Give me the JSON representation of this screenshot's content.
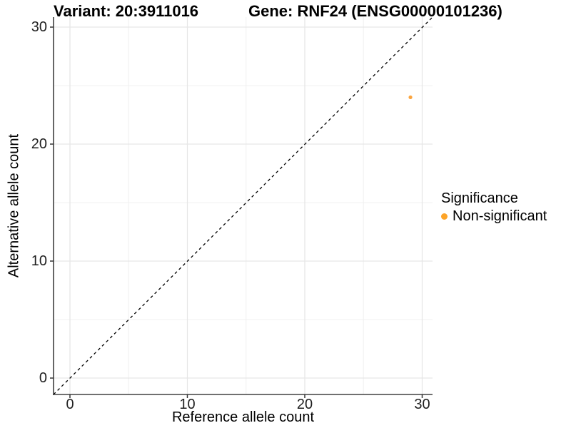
{
  "titles": {
    "variant": "Variant: 20:3911016",
    "gene": "Gene: RNF24 (ENSG00000101236)"
  },
  "chart_data": {
    "type": "scatter",
    "xlabel": "Reference allele count",
    "ylabel": "Alternative allele count",
    "xlim": [
      0,
      30
    ],
    "ylim": [
      0,
      30
    ],
    "x_major_ticks": [
      0,
      10,
      20,
      30
    ],
    "x_minor_ticks": [
      5,
      15,
      25
    ],
    "y_major_ticks": [
      0,
      10,
      20,
      30
    ],
    "y_minor_ticks": [
      5,
      15,
      25
    ],
    "x_tick_labels": [
      "0",
      "10",
      "20",
      "30"
    ],
    "y_tick_labels": [
      "0",
      "10",
      "20",
      "30"
    ],
    "grid": true,
    "points": [
      {
        "x": 29,
        "y": 24,
        "series": "Non-significant"
      }
    ],
    "reference_line": {
      "slope": 1,
      "intercept": 0,
      "style": "dashed",
      "color": "#000000"
    },
    "legend": {
      "position": "right",
      "title": "Significance",
      "entries": [
        {
          "label": "Non-significant",
          "color": "#FDA428"
        }
      ]
    },
    "colors": {
      "point": "#FBA53F",
      "grid_major": "#E6E6E6",
      "grid_minor": "#F0F0F0",
      "axis_line": "#404040",
      "tick_mark": "#333333"
    }
  }
}
